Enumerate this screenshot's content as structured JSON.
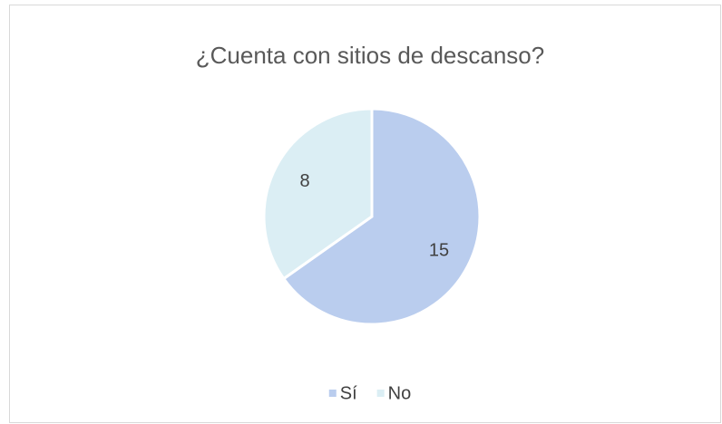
{
  "chart_data": {
    "type": "pie",
    "title": "¿Cuenta con sitios de descanso?",
    "categories": [
      "Sí",
      "No"
    ],
    "values": [
      15,
      8
    ],
    "colors": [
      "#bacdee",
      "#dbeef4"
    ],
    "legend": "bottom"
  }
}
